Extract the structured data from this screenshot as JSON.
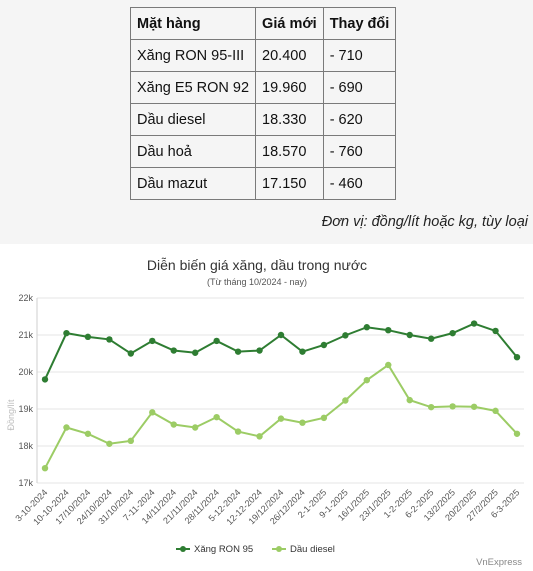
{
  "table": {
    "headers": [
      "Mặt hàng",
      "Giá mới",
      "Thay đổi"
    ],
    "rows": [
      [
        "Xăng RON 95-III",
        "20.400",
        "- 710"
      ],
      [
        "Xăng E5 RON 92",
        "19.960",
        "- 690"
      ],
      [
        "Dầu diesel",
        "18.330",
        "- 620"
      ],
      [
        "Dầu hoả",
        "18.570",
        "- 760"
      ],
      [
        "Dầu mazut",
        "17.150",
        "- 460"
      ]
    ]
  },
  "unit_note": "Đơn vị: đồng/lít hoặc kg, tùy loại",
  "chart_data": {
    "type": "line",
    "title": "Diễn biến giá xăng, dầu trong nước",
    "subtitle": "(Từ tháng 10/2024 - nay)",
    "ylabel": "Đồng/lít",
    "xlabel": "",
    "ylim": [
      17000,
      22000
    ],
    "y_ticks": [
      17000,
      18000,
      19000,
      20000,
      21000,
      22000
    ],
    "y_tick_labels": [
      "17k",
      "18k",
      "19k",
      "20k",
      "21k",
      "22k"
    ],
    "categories": [
      "3-10-2024",
      "10-10-2024",
      "17/10/2024",
      "24/10/2024",
      "31/10/2024",
      "7-11-2024",
      "14/11/2024",
      "21/11/2024",
      "28/11/2024",
      "5-12-2024",
      "12-12-2024",
      "19/12/2024",
      "26/12/2024",
      "2-1-2025",
      "9-1-2025",
      "16/1/2025",
      "23/1/2025",
      "1-2-2025",
      "6-2-2025",
      "13/2/2025",
      "20/2/2025",
      "27/2/2025",
      "6-3-2025"
    ],
    "series": [
      {
        "name": "Xăng RON 95",
        "color": "#2e7d32",
        "values": [
          19800,
          21050,
          20950,
          20880,
          20500,
          20840,
          20580,
          20520,
          20840,
          20550,
          20580,
          21000,
          20550,
          20730,
          20990,
          21210,
          21130,
          21000,
          20900,
          21050,
          21310,
          21110,
          20400
        ]
      },
      {
        "name": "Dầu diesel",
        "color": "#9ccc65",
        "values": [
          17400,
          18500,
          18330,
          18060,
          18140,
          18910,
          18580,
          18500,
          18780,
          18390,
          18260,
          18740,
          18630,
          18760,
          19230,
          19780,
          20190,
          19240,
          19050,
          19070,
          19060,
          18950,
          18330
        ]
      }
    ],
    "grid": true,
    "legend": "bottom-center"
  },
  "credit": "VnExpress"
}
